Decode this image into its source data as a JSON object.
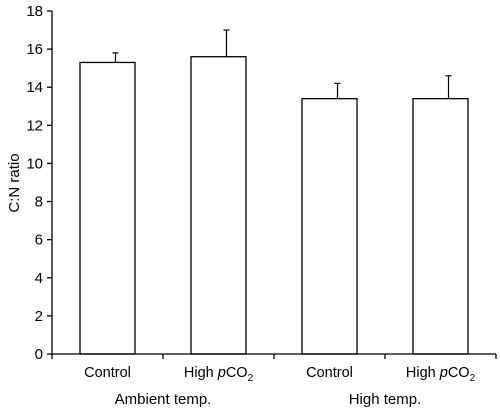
{
  "chart_data": {
    "type": "bar",
    "ylabel": "C:N ratio",
    "ylim": [
      0,
      18
    ],
    "yticks": [
      "0",
      "2",
      "4",
      "6",
      "8",
      "10",
      "12",
      "14",
      "16",
      "18"
    ],
    "categories": [
      {
        "label": "Control",
        "italic": "",
        "rest": "",
        "sub": ""
      },
      {
        "label": "High ",
        "italic": "p",
        "rest": "CO",
        "sub": "2"
      },
      {
        "label": "Control",
        "italic": "",
        "rest": "",
        "sub": ""
      },
      {
        "label": "High ",
        "italic": "p",
        "rest": "CO",
        "sub": "2"
      }
    ],
    "groups": [
      {
        "label": "Ambient temp.",
        "members": [
          0,
          1
        ]
      },
      {
        "label": "High temp.",
        "members": [
          2,
          3
        ]
      }
    ],
    "values": [
      15.3,
      15.6,
      13.4,
      13.4
    ],
    "errors": [
      0.5,
      1.4,
      0.8,
      1.2
    ],
    "grid": false,
    "bar_fill": "#ffffff",
    "bar_stroke": "#000000"
  }
}
